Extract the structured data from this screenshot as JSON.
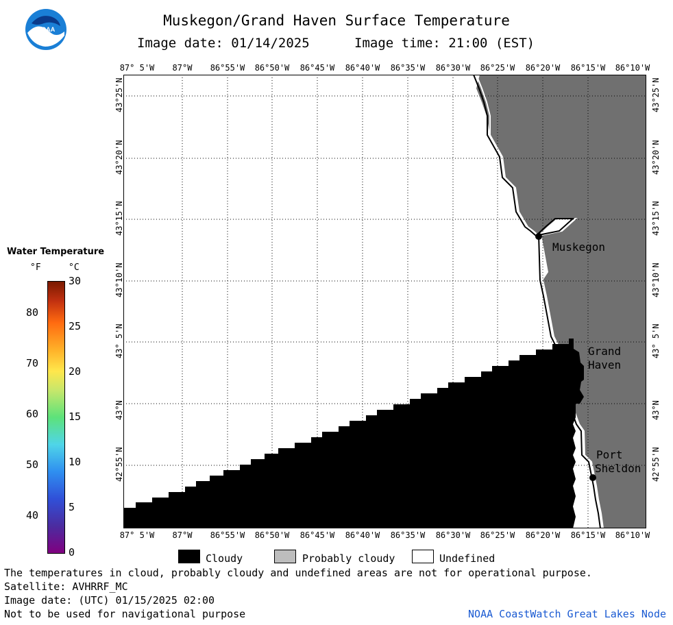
{
  "title": "Muskegon/Grand Haven Surface Temperature",
  "image_date": "Image date: 01/14/2025",
  "image_time": "Image time: 21:00 (EST)",
  "logo": {
    "text": "NOAA",
    "colors": {
      "outer": "#1a7fd6",
      "inner": "#0a3a8a"
    }
  },
  "map": {
    "land_color": "#707070",
    "cloud_color": "#000000",
    "lon_labels": [
      "87° 5'W",
      "87°W",
      "86°55'W",
      "86°50'W",
      "86°45'W",
      "86°40'W",
      "86°35'W",
      "86°30'W",
      "86°25'W",
      "86°20'W",
      "86°15'W",
      "86°10'W"
    ],
    "lat_labels": [
      "43°25'N",
      "43°20'N",
      "43°15'N",
      "43°10'N",
      "43° 5'N",
      "43°N",
      "42°55'N"
    ],
    "places": [
      {
        "name": "Muskegon",
        "lines": [
          "Muskegon"
        ]
      },
      {
        "name": "Grand Haven",
        "lines": [
          "Grand",
          "Haven"
        ]
      },
      {
        "name": "Port Sheldon",
        "lines": [
          "Port",
          "Sheldon"
        ]
      }
    ]
  },
  "legend_scale": {
    "title": "Water Temperature",
    "unit_f": "°F",
    "unit_c": "°C",
    "f_ticks": [
      "40",
      "50",
      "60",
      "70",
      "80"
    ],
    "c_ticks": [
      "0",
      "5",
      "10",
      "15",
      "20",
      "25",
      "30"
    ]
  },
  "legend": {
    "cloudy": "Cloudy",
    "probably_cloudy": "Probably cloudy",
    "undefined": "Undefined"
  },
  "footer": {
    "note": "The temperatures in cloud, probably cloudy and undefined areas are not for operational purpose.",
    "satellite": "Satellite: AVHRRF_MC",
    "utc_date": "Image date: (UTC) 01/15/2025  02:00",
    "nav": "Not to be used for navigational purpose",
    "credit": "NOAA CoastWatch Great Lakes Node"
  }
}
